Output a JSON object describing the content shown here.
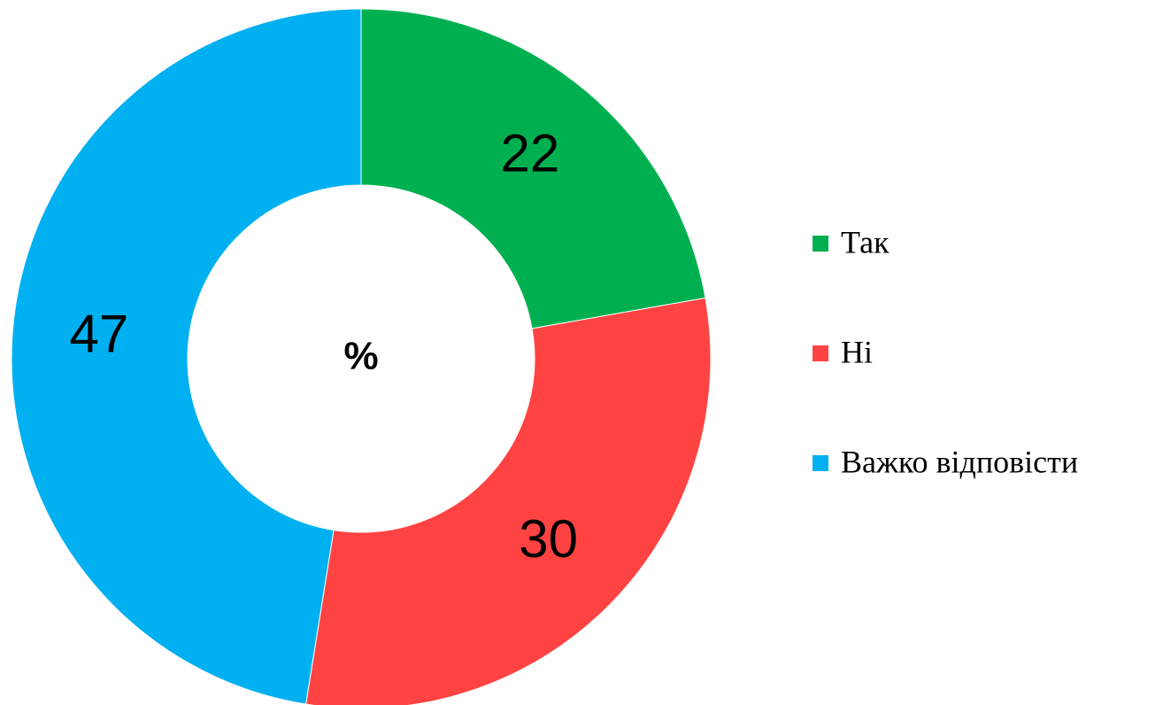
{
  "chart_data": {
    "type": "donut",
    "center_label": "%",
    "categories": [
      "Так",
      "Ні",
      "Важко відповісти"
    ],
    "values": [
      22,
      30,
      47
    ],
    "colors": [
      "#00b050",
      "#ff4343",
      "#00b0f0"
    ],
    "legend": "right"
  }
}
